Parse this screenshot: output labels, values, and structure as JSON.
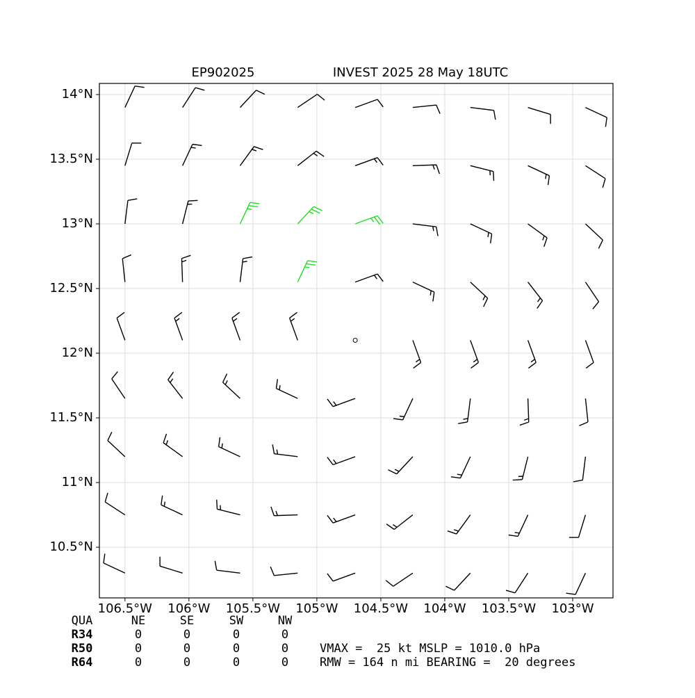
{
  "chart_data": {
    "type": "barbs",
    "title_left": "EP902025",
    "title_right": "INVEST 2025 28 May 18UTC",
    "xlim": [
      -106.7,
      -102.685
    ],
    "ylim": [
      10.108,
      14.086
    ],
    "xticks": [
      {
        "value": -106.5,
        "label": "106.5°W"
      },
      {
        "value": -106,
        "label": "106°W"
      },
      {
        "value": -105.5,
        "label": "105.5°W"
      },
      {
        "value": -105,
        "label": "105°W"
      },
      {
        "value": -104.5,
        "label": "104.5°W"
      },
      {
        "value": -104,
        "label": "104°W"
      },
      {
        "value": -103.5,
        "label": "103.5°W"
      },
      {
        "value": -103,
        "label": "103°W"
      }
    ],
    "yticks": [
      {
        "value": 10.5,
        "label": "10.5°N"
      },
      {
        "value": 11,
        "label": "11°N"
      },
      {
        "value": 11.5,
        "label": "11.5°N"
      },
      {
        "value": 12,
        "label": "12°N"
      },
      {
        "value": 12.5,
        "label": "12.5°N"
      },
      {
        "value": 13,
        "label": "13°N"
      },
      {
        "value": 13.5,
        "label": "13.5°N"
      },
      {
        "value": 14,
        "label": "14°N"
      }
    ],
    "grid": true,
    "color": "#000000",
    "highlight": {
      "min_speed": 25,
      "color": "#22dd22"
    },
    "lon": [
      -106.5,
      -106.05,
      -105.6,
      -105.15,
      -104.7,
      -104.25,
      -103.8,
      -103.35,
      -102.9
    ],
    "lat": [
      13.9,
      13.45,
      13.0,
      12.55,
      12.1,
      11.65,
      11.2,
      10.75,
      10.3
    ],
    "speed": [
      [
        10,
        10,
        10,
        10,
        10,
        10,
        10,
        10,
        10
      ],
      [
        10,
        15,
        15,
        15,
        15,
        15,
        15,
        15,
        10
      ],
      [
        10,
        15,
        25,
        25,
        25,
        15,
        15,
        15,
        10
      ],
      [
        10,
        15,
        15,
        25,
        15,
        15,
        15,
        15,
        10
      ],
      [
        10,
        15,
        15,
        15,
        0,
        15,
        15,
        15,
        10
      ],
      [
        10,
        15,
        15,
        15,
        15,
        15,
        15,
        15,
        10
      ],
      [
        10,
        15,
        15,
        15,
        15,
        15,
        15,
        15,
        10
      ],
      [
        10,
        15,
        15,
        15,
        15,
        15,
        15,
        15,
        10
      ],
      [
        10,
        10,
        10,
        10,
        10,
        10,
        10,
        10,
        10
      ]
    ],
    "direction": [
      [
        25,
        33,
        43,
        56,
        70,
        84,
        97,
        107,
        115
      ],
      [
        17,
        25,
        36,
        52,
        70,
        88,
        104,
        115,
        123
      ],
      [
        7,
        14,
        25,
        43,
        70,
        97,
        115,
        126,
        133
      ],
      [
        354,
        358,
        7,
        25,
        70,
        115,
        133,
        142,
        146
      ],
      [
        340,
        340,
        340,
        340,
        0,
        160,
        160,
        160,
        160
      ],
      [
        326,
        322,
        313,
        295,
        250,
        205,
        187,
        178,
        174
      ],
      [
        313,
        306,
        295,
        277,
        250,
        223,
        205,
        194,
        187
      ],
      [
        303,
        295,
        284,
        268,
        250,
        232,
        216,
        205,
        197
      ],
      [
        295,
        287,
        277,
        264,
        250,
        236,
        223,
        213,
        205
      ]
    ],
    "radii_table": {
      "header": [
        "QUA",
        "NE",
        "SE",
        "SW",
        "NW"
      ],
      "rows": [
        [
          "R34",
          0,
          0,
          0,
          0
        ],
        [
          "R50",
          0,
          0,
          0,
          0
        ],
        [
          "R64",
          0,
          0,
          0,
          0
        ]
      ]
    },
    "info_lines": [
      "VMAX =  25 kt MSLP = 1010.0 hPa",
      "RMW = 164 n mi BEARING =  20 degrees"
    ]
  }
}
